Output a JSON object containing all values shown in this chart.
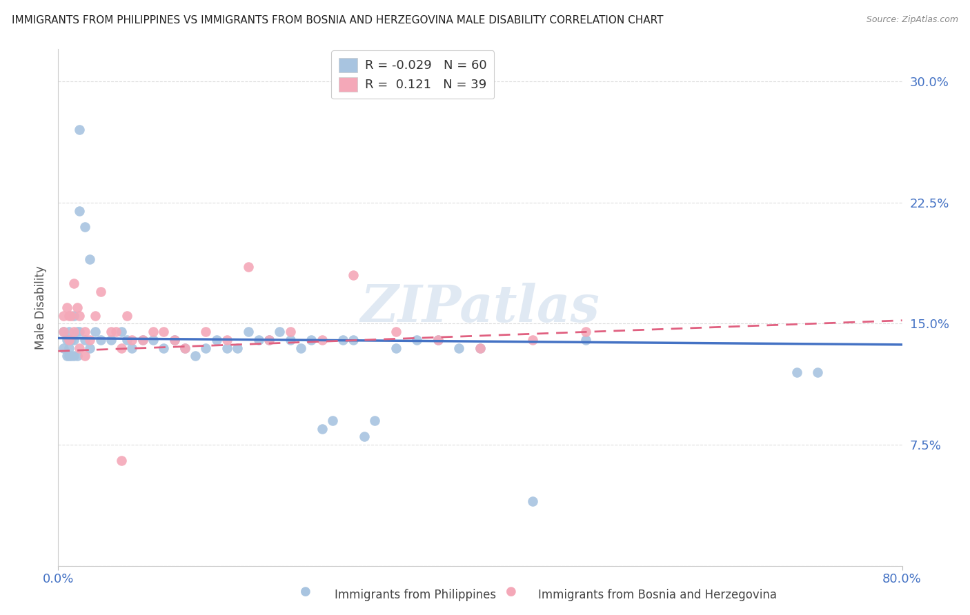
{
  "title": "IMMIGRANTS FROM PHILIPPINES VS IMMIGRANTS FROM BOSNIA AND HERZEGOVINA MALE DISABILITY CORRELATION CHART",
  "source": "Source: ZipAtlas.com",
  "ylabel": "Male Disability",
  "yticks": [
    0.0,
    0.075,
    0.15,
    0.225,
    0.3
  ],
  "ytick_labels": [
    "",
    "7.5%",
    "15.0%",
    "22.5%",
    "30.0%"
  ],
  "xlim": [
    0.0,
    0.8
  ],
  "ylim": [
    0.0,
    0.32
  ],
  "legend_r1": "R = -0.029",
  "legend_n1": "N = 60",
  "legend_r2": "R =  0.121",
  "legend_n2": "N = 39",
  "color_blue": "#a8c4e0",
  "color_pink": "#f4a8b8",
  "color_blue_line": "#4472c4",
  "color_pink_line": "#e06080",
  "color_axis_labels": "#4472c4",
  "watermark": "ZIPatlas",
  "philippines_x": [
    0.005,
    0.005,
    0.008,
    0.008,
    0.01,
    0.01,
    0.01,
    0.01,
    0.012,
    0.012,
    0.015,
    0.015,
    0.015,
    0.018,
    0.018,
    0.02,
    0.02,
    0.02,
    0.025,
    0.025,
    0.03,
    0.03,
    0.035,
    0.04,
    0.05,
    0.06,
    0.065,
    0.07,
    0.08,
    0.09,
    0.1,
    0.11,
    0.12,
    0.13,
    0.14,
    0.15,
    0.16,
    0.17,
    0.18,
    0.19,
    0.2,
    0.21,
    0.22,
    0.23,
    0.24,
    0.25,
    0.26,
    0.27,
    0.28,
    0.29,
    0.3,
    0.32,
    0.34,
    0.36,
    0.38,
    0.4,
    0.45,
    0.5,
    0.7,
    0.72
  ],
  "philippines_y": [
    0.145,
    0.135,
    0.14,
    0.13,
    0.145,
    0.14,
    0.135,
    0.13,
    0.14,
    0.13,
    0.155,
    0.14,
    0.13,
    0.145,
    0.13,
    0.27,
    0.22,
    0.145,
    0.21,
    0.14,
    0.19,
    0.135,
    0.145,
    0.14,
    0.14,
    0.145,
    0.14,
    0.135,
    0.14,
    0.14,
    0.135,
    0.14,
    0.135,
    0.13,
    0.135,
    0.14,
    0.135,
    0.135,
    0.145,
    0.14,
    0.14,
    0.145,
    0.14,
    0.135,
    0.14,
    0.085,
    0.09,
    0.14,
    0.14,
    0.08,
    0.09,
    0.135,
    0.14,
    0.14,
    0.135,
    0.135,
    0.04,
    0.14,
    0.12,
    0.12
  ],
  "bosnia_x": [
    0.005,
    0.005,
    0.008,
    0.01,
    0.01,
    0.012,
    0.015,
    0.015,
    0.018,
    0.02,
    0.02,
    0.025,
    0.025,
    0.03,
    0.035,
    0.04,
    0.05,
    0.055,
    0.06,
    0.065,
    0.07,
    0.08,
    0.09,
    0.1,
    0.11,
    0.12,
    0.14,
    0.16,
    0.18,
    0.2,
    0.22,
    0.25,
    0.28,
    0.32,
    0.36,
    0.4,
    0.45,
    0.5,
    0.06
  ],
  "bosnia_y": [
    0.155,
    0.145,
    0.16,
    0.155,
    0.14,
    0.155,
    0.175,
    0.145,
    0.16,
    0.155,
    0.135,
    0.145,
    0.13,
    0.14,
    0.155,
    0.17,
    0.145,
    0.145,
    0.135,
    0.155,
    0.14,
    0.14,
    0.145,
    0.145,
    0.14,
    0.135,
    0.145,
    0.14,
    0.185,
    0.14,
    0.145,
    0.14,
    0.18,
    0.145,
    0.14,
    0.135,
    0.14,
    0.145,
    0.065
  ],
  "blue_line": [
    0.0,
    0.8,
    0.141,
    0.137
  ],
  "pink_line": [
    0.0,
    0.8,
    0.133,
    0.152
  ]
}
